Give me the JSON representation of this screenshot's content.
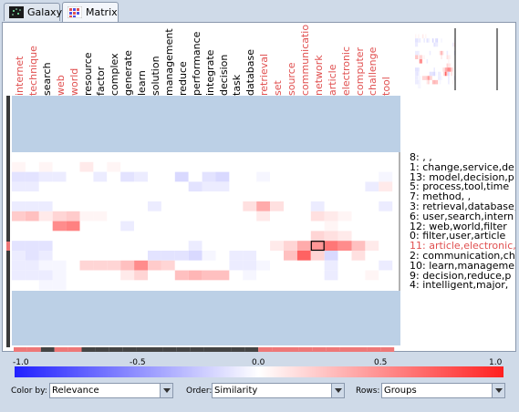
{
  "tabs": [
    {
      "label": "Galaxy",
      "active": false
    },
    {
      "label": "Matrix",
      "active": true
    }
  ],
  "columns": [
    {
      "label": "internet",
      "highlight": true
    },
    {
      "label": "technique",
      "highlight": true
    },
    {
      "label": "search",
      "highlight": false
    },
    {
      "label": "web",
      "highlight": true
    },
    {
      "label": "world",
      "highlight": true
    },
    {
      "label": "resource",
      "highlight": false
    },
    {
      "label": "factor",
      "highlight": false
    },
    {
      "label": "complex",
      "highlight": false
    },
    {
      "label": "generate",
      "highlight": false
    },
    {
      "label": "learn",
      "highlight": false
    },
    {
      "label": "solution",
      "highlight": false
    },
    {
      "label": "management",
      "highlight": false
    },
    {
      "label": "reduce",
      "highlight": false
    },
    {
      "label": "performance",
      "highlight": false
    },
    {
      "label": "integrate",
      "highlight": false
    },
    {
      "label": "decision",
      "highlight": false
    },
    {
      "label": "task",
      "highlight": false
    },
    {
      "label": "database",
      "highlight": false
    },
    {
      "label": "retrieval",
      "highlight": true
    },
    {
      "label": "set",
      "highlight": true
    },
    {
      "label": "source",
      "highlight": true
    },
    {
      "label": "communication",
      "highlight": true
    },
    {
      "label": "network",
      "highlight": true
    },
    {
      "label": "article",
      "highlight": true
    },
    {
      "label": "electronic",
      "highlight": true
    },
    {
      "label": "computer",
      "highlight": true
    },
    {
      "label": "challenge",
      "highlight": true
    },
    {
      "label": "tool",
      "highlight": true
    }
  ],
  "rows": [
    {
      "label": "8: , ,",
      "highlight": false
    },
    {
      "label": "1: change,service,de",
      "highlight": false
    },
    {
      "label": "13: model,decision,p",
      "highlight": false
    },
    {
      "label": "5: process,tool,time",
      "highlight": false
    },
    {
      "label": "7: method, ,",
      "highlight": false
    },
    {
      "label": "3: retrieval,database,",
      "highlight": false
    },
    {
      "label": "6: user,search,intern",
      "highlight": false
    },
    {
      "label": "12: web,world,filter",
      "highlight": false
    },
    {
      "label": "0: filter,user,article",
      "highlight": false
    },
    {
      "label": "11: article,electronic,",
      "highlight": true
    },
    {
      "label": "2: communication,ch",
      "highlight": false
    },
    {
      "label": "10: learn,manageme",
      "highlight": false
    },
    {
      "label": "9: decision,reduce,p",
      "highlight": false
    },
    {
      "label": "4: intelligent,major,",
      "highlight": false
    }
  ],
  "cell_values": [
    [
      0,
      0,
      0,
      0,
      0,
      0,
      0,
      0,
      0,
      0,
      0,
      0,
      0,
      0,
      0,
      0,
      0,
      0,
      0,
      0,
      0,
      0,
      0,
      0,
      0,
      0,
      0,
      0
    ],
    [
      0.05,
      0,
      0.05,
      0,
      0,
      0.1,
      0,
      0.05,
      0,
      0,
      0,
      0,
      0,
      0,
      0,
      0,
      0,
      0,
      0,
      0,
      0,
      0,
      0,
      0,
      0,
      0,
      0,
      0
    ],
    [
      -0.15,
      -0.15,
      -0.1,
      -0.1,
      0,
      0,
      -0.1,
      0,
      -0.15,
      -0.1,
      0,
      0,
      -0.2,
      0,
      -0.15,
      -0.2,
      0,
      0,
      -0.05,
      0,
      0,
      0,
      0,
      0,
      0,
      0,
      0,
      -0.05
    ],
    [
      -0.1,
      -0.1,
      0,
      0,
      0,
      0,
      0,
      0,
      0,
      0,
      0,
      0,
      0,
      -0.15,
      -0.1,
      -0.1,
      0,
      0,
      0,
      0,
      0,
      0,
      0,
      0,
      0,
      0,
      -0.1,
      0.1
    ],
    [
      0,
      0,
      0,
      0,
      0,
      0,
      0,
      0,
      0,
      0,
      0,
      0,
      0,
      0,
      0,
      0,
      0,
      0,
      0,
      0,
      0,
      0,
      0,
      0,
      0,
      0,
      0,
      0
    ],
    [
      -0.1,
      -0.1,
      -0.1,
      0,
      0,
      0,
      0,
      0,
      0,
      0,
      -0.1,
      0,
      0,
      0,
      0,
      0,
      0,
      0.15,
      0.4,
      0.15,
      0,
      0,
      -0.1,
      0,
      0,
      0,
      0,
      -0.1
    ],
    [
      0.25,
      0.3,
      0.1,
      0.2,
      0.25,
      0.05,
      0.05,
      0,
      0,
      0,
      0,
      0,
      0,
      0,
      0,
      0,
      0,
      0,
      0.1,
      0,
      0,
      0,
      0.15,
      0.1,
      0.05,
      0,
      0,
      0
    ],
    [
      0,
      0,
      0,
      0.55,
      0.6,
      0,
      0,
      0,
      -0.1,
      0,
      0,
      0,
      0,
      0,
      0,
      0,
      0,
      0,
      0,
      0,
      0,
      0,
      0,
      0.05,
      0,
      0,
      0,
      0
    ],
    [
      0,
      0,
      0,
      0,
      0,
      0,
      0,
      0,
      0,
      0,
      0,
      0,
      0,
      0,
      0,
      0,
      0,
      0,
      0,
      0,
      0,
      0,
      0.2,
      0.15,
      0.1,
      0,
      0,
      0
    ],
    [
      -0.15,
      -0.15,
      -0.15,
      0,
      0,
      0,
      0,
      0,
      0,
      0,
      0,
      0,
      0,
      -0.1,
      0,
      0,
      0,
      0,
      0,
      0.1,
      0.2,
      0.4,
      0.5,
      0.65,
      0.55,
      0.3,
      0.1,
      0
    ],
    [
      -0.1,
      -0.15,
      -0.1,
      0,
      0,
      0,
      0,
      0,
      0,
      0,
      -0.15,
      -0.15,
      -0.15,
      -0.2,
      -0.05,
      0,
      -0.1,
      -0.1,
      0,
      0,
      0.3,
      0.75,
      0.2,
      -0.2,
      0,
      0.15,
      0,
      0
    ],
    [
      -0.1,
      -0.1,
      -0.05,
      -0.05,
      0,
      0.2,
      0.2,
      0.2,
      0.3,
      0.55,
      0.25,
      0.2,
      0,
      0,
      0,
      0,
      -0.1,
      -0.1,
      -0.05,
      0,
      0,
      0,
      0,
      -0.1,
      0,
      0,
      0,
      -0.1
    ],
    [
      -0.1,
      -0.1,
      -0.1,
      -0.05,
      0,
      0,
      0,
      0,
      0.1,
      0.2,
      0,
      0,
      0.3,
      0.35,
      0.3,
      0.3,
      0,
      -0.05,
      0,
      0,
      0,
      0,
      0,
      -0.1,
      0,
      0,
      0.05,
      0
    ],
    [
      0,
      0,
      -0.05,
      -0.05,
      0,
      0,
      0,
      0,
      0,
      0,
      0,
      0,
      0,
      0,
      0,
      0,
      0,
      0,
      0,
      0,
      0,
      0,
      0,
      0,
      0,
      0,
      0,
      0
    ]
  ],
  "selected_cell": {
    "row": 9,
    "col": 22
  },
  "column_bar_colors": [
    "#ee7777",
    "#ee7777",
    "#444444",
    "#ee7777",
    "#ee7777",
    "#444444",
    "#444444",
    "#444444",
    "#444444",
    "#444444",
    "#444444",
    "#444444",
    "#444444",
    "#444444",
    "#444444",
    "#444444",
    "#444444",
    "#444444",
    "#ee7777",
    "#ee7777",
    "#ee7777",
    "#ee7777",
    "#ee7777",
    "#ee7777",
    "#ee7777",
    "#ee7777",
    "#ee7777",
    "#ee7777"
  ],
  "scale": {
    "min_label": "-1.0",
    "q1_label": "-0.5",
    "mid_label": "0.0",
    "q3_label": "0.5",
    "max_label": "1.0"
  },
  "controls": {
    "color_by_label": "Color by:",
    "color_by_value": "Relevance",
    "order_label": "Order:",
    "order_value": "Similarity",
    "rows_label": "Rows:",
    "rows_value": "Groups"
  },
  "colors": {
    "highlight_text": "#e05050",
    "positive": "#ff3030",
    "negative": "#4040ff"
  }
}
